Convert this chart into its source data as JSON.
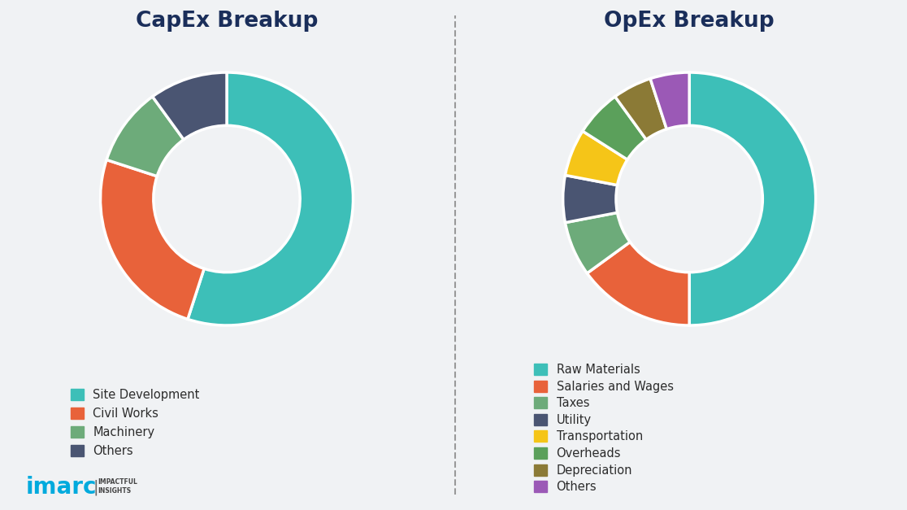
{
  "capex_title": "CapEx Breakup",
  "opex_title": "OpEx Breakup",
  "capex_labels": [
    "Site Development",
    "Civil Works",
    "Machinery",
    "Others"
  ],
  "capex_values": [
    55,
    25,
    10,
    10
  ],
  "capex_colors": [
    "#3dbfb8",
    "#e8623a",
    "#6dab7a",
    "#4a5572"
  ],
  "capex_startangle": 90,
  "opex_labels": [
    "Raw Materials",
    "Salaries and Wages",
    "Taxes",
    "Utility",
    "Transportation",
    "Overheads",
    "Depreciation",
    "Others"
  ],
  "opex_values": [
    50,
    15,
    7,
    6,
    6,
    6,
    5,
    5
  ],
  "opex_colors": [
    "#3dbfb8",
    "#e8623a",
    "#6dab7a",
    "#4a5572",
    "#f5c518",
    "#5ba05b",
    "#8b7a36",
    "#9b59b6"
  ],
  "opex_startangle": 90,
  "bg_color": "#f0f2f4",
  "title_color": "#1a2e5a",
  "legend_fontsize": 10.5,
  "title_fontsize": 19
}
